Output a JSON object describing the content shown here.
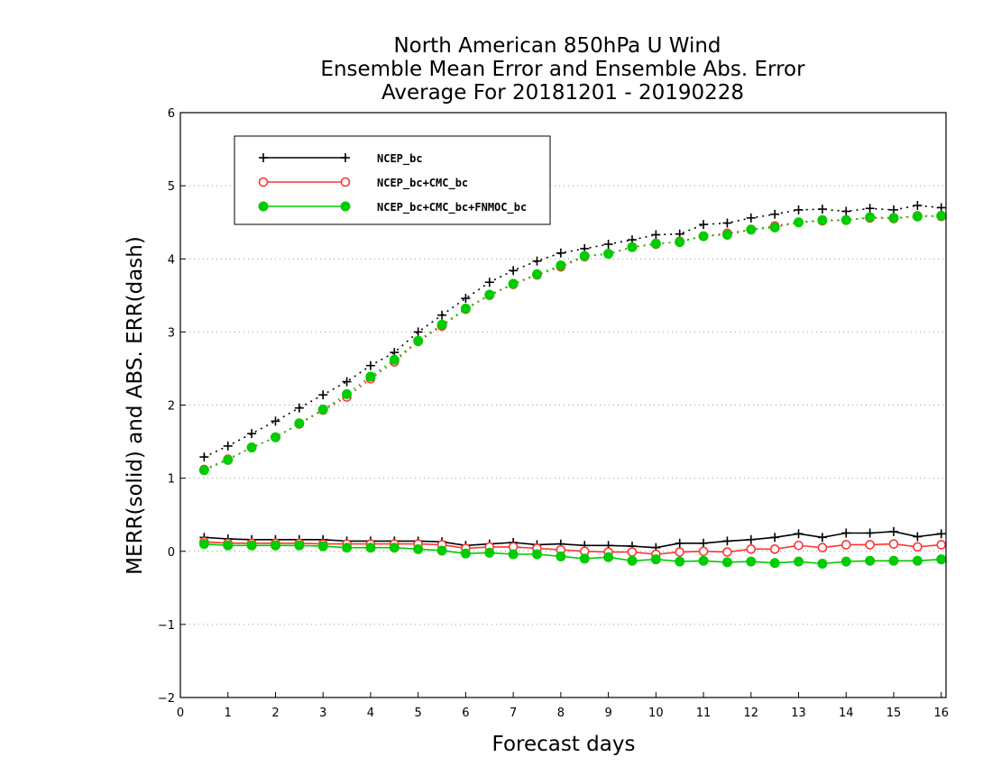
{
  "chart_data": {
    "type": "line",
    "title_lines": [
      "North American 850hPa U Wind",
      "Ensemble Mean Error and Ensemble Abs. Error",
      "Average For 20181201 - 20190228"
    ],
    "xlabel": "Forecast days",
    "ylabel": "MERR(solid) and ABS. ERR(dash)",
    "xlim": [
      0,
      16.1
    ],
    "ylim": [
      -2,
      6
    ],
    "xticks": [
      0,
      1,
      2,
      3,
      4,
      5,
      6,
      7,
      8,
      9,
      10,
      11,
      12,
      13,
      14,
      15,
      16
    ],
    "yticks": [
      -2,
      -1,
      0,
      1,
      2,
      3,
      4,
      5,
      6
    ],
    "grid": "horizontal dotted",
    "legend_position": "top-left",
    "x": [
      0.5,
      1,
      1.5,
      2,
      2.5,
      3,
      3.5,
      4,
      4.5,
      5,
      5.5,
      6,
      6.5,
      7,
      7.5,
      8,
      8.5,
      9,
      9.5,
      10,
      10.5,
      11,
      11.5,
      12,
      12.5,
      13,
      13.5,
      14,
      14.5,
      15,
      15.5,
      16
    ],
    "series": [
      {
        "name": "NCEP_bc",
        "color": "#000000",
        "marker": "plus",
        "merr": [
          0.19,
          0.17,
          0.16,
          0.16,
          0.16,
          0.16,
          0.14,
          0.14,
          0.14,
          0.14,
          0.13,
          0.08,
          0.1,
          0.12,
          0.09,
          0.1,
          0.08,
          0.08,
          0.07,
          0.05,
          0.11,
          0.11,
          0.14,
          0.16,
          0.19,
          0.24,
          0.19,
          0.25,
          0.25,
          0.27,
          0.2,
          0.24
        ],
        "abs_err": [
          1.29,
          1.44,
          1.61,
          1.78,
          1.96,
          2.14,
          2.32,
          2.54,
          2.72,
          3.0,
          3.23,
          3.46,
          3.68,
          3.84,
          3.97,
          4.08,
          4.14,
          4.2,
          4.26,
          4.33,
          4.34,
          4.47,
          4.49,
          4.56,
          4.61,
          4.67,
          4.68,
          4.65,
          4.69,
          4.67,
          4.73,
          4.7
        ]
      },
      {
        "name": "NCEP_bc+CMC_bc",
        "color": "#ff3333",
        "marker": "open-circle",
        "merr": [
          0.13,
          0.11,
          0.11,
          0.11,
          0.11,
          0.1,
          0.1,
          0.1,
          0.1,
          0.1,
          0.09,
          0.04,
          0.06,
          0.06,
          0.04,
          0.02,
          0.0,
          -0.01,
          -0.01,
          -0.04,
          -0.01,
          0.0,
          -0.01,
          0.03,
          0.03,
          0.08,
          0.05,
          0.09,
          0.09,
          0.1,
          0.06,
          0.09
        ],
        "abs_err": [
          1.12,
          1.26,
          1.42,
          1.56,
          1.74,
          1.93,
          2.11,
          2.36,
          2.59,
          2.87,
          3.08,
          3.31,
          3.5,
          3.65,
          3.78,
          3.89,
          4.03,
          4.07,
          4.16,
          4.2,
          4.24,
          4.31,
          4.35,
          4.4,
          4.45,
          4.5,
          4.52,
          4.53,
          4.56,
          4.55,
          4.59,
          4.58
        ]
      },
      {
        "name": "NCEP_bc+CMC_bc+FNMOC_bc",
        "color": "#00cc00",
        "marker": "filled-circle",
        "merr": [
          0.1,
          0.08,
          0.08,
          0.08,
          0.08,
          0.07,
          0.05,
          0.05,
          0.05,
          0.03,
          0.01,
          -0.03,
          -0.02,
          -0.04,
          -0.04,
          -0.07,
          -0.1,
          -0.08,
          -0.13,
          -0.11,
          -0.14,
          -0.13,
          -0.15,
          -0.14,
          -0.16,
          -0.14,
          -0.17,
          -0.14,
          -0.13,
          -0.13,
          -0.13,
          -0.11
        ],
        "abs_err": [
          1.11,
          1.25,
          1.42,
          1.56,
          1.75,
          1.94,
          2.15,
          2.39,
          2.62,
          2.88,
          3.1,
          3.32,
          3.51,
          3.66,
          3.79,
          3.91,
          4.04,
          4.07,
          4.16,
          4.21,
          4.23,
          4.31,
          4.33,
          4.4,
          4.43,
          4.5,
          4.53,
          4.53,
          4.57,
          4.56,
          4.58,
          4.59
        ]
      }
    ]
  }
}
